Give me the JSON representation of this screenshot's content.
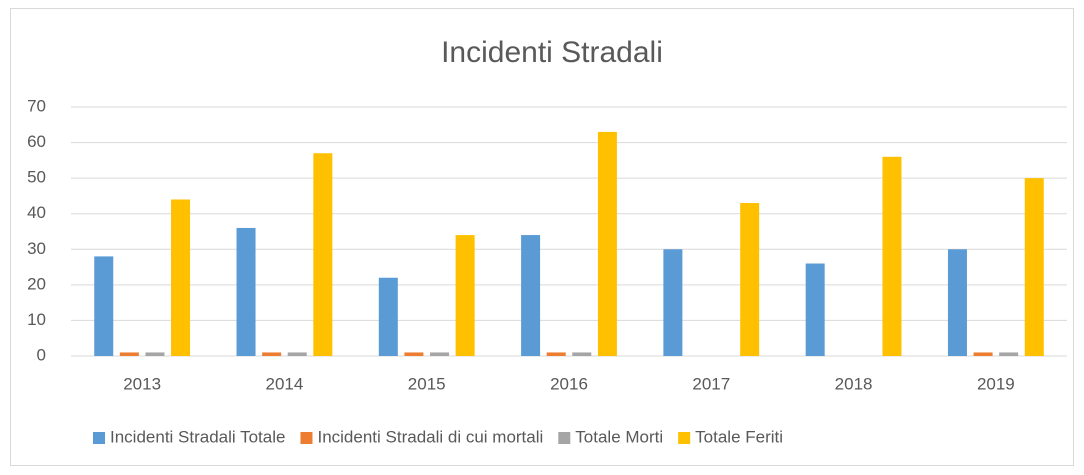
{
  "chart_data": {
    "type": "bar",
    "title": "Incidenti Stradali",
    "categories": [
      "2013",
      "2014",
      "2015",
      "2016",
      "2017",
      "2018",
      "2019"
    ],
    "series": [
      {
        "name": "Incidenti Stradali Totale",
        "color": "#5b9bd5",
        "values": [
          28,
          36,
          22,
          34,
          30,
          26,
          30
        ]
      },
      {
        "name": "Incidenti Stradali di cui mortali",
        "color": "#ed7d31",
        "values": [
          1,
          1,
          1,
          1,
          0,
          0,
          1
        ]
      },
      {
        "name": "Totale Morti",
        "color": "#a5a5a5",
        "values": [
          1,
          1,
          1,
          1,
          0,
          0,
          1
        ]
      },
      {
        "name": "Totale Feriti",
        "color": "#ffc000",
        "values": [
          44,
          57,
          34,
          63,
          43,
          56,
          50
        ]
      }
    ],
    "ylim": [
      0,
      70
    ],
    "yticks": [
      0,
      10,
      20,
      30,
      40,
      50,
      60,
      70
    ],
    "grid": true,
    "legend": "bottom"
  }
}
